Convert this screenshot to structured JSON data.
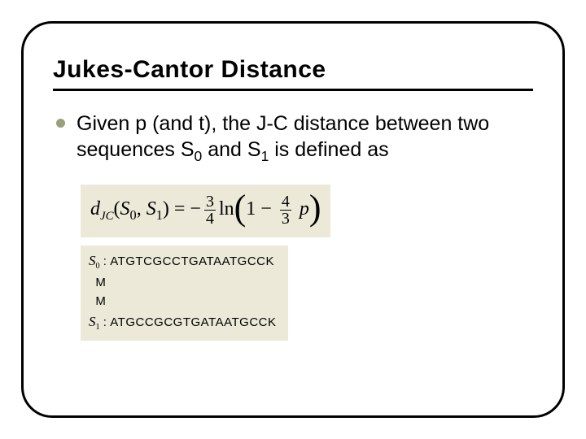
{
  "slide": {
    "title": "Jukes-Cantor Distance",
    "bullet_color": "#9aa07a",
    "body_parts": {
      "p1": "Given p (and t), the J-C distance between two sequences S",
      "s0": "0",
      "p2": " and S",
      "s1": "1",
      "p3": " is defined as"
    },
    "formula": {
      "bg": "#ece9d8",
      "d": "d",
      "jc": "JC",
      "lp": "(",
      "S": "S",
      "s0": "0",
      "comma": ", ",
      "s1": "1",
      "rp": ")",
      "eq": " = ",
      "minus": "−",
      "f1_num": "3",
      "f1_den": "4",
      "ln": "ln",
      "big_l": "(",
      "one": "1",
      "minus2": " − ",
      "f2_num": "4",
      "f2_den": "3",
      "p": "p",
      "big_r": ")"
    },
    "sequences": {
      "bg": "#ece9d8",
      "row0_label": "S",
      "row0_sub": "0",
      "row0_seq": ": ATGTCGCCTGATAATGCCK",
      "m1": "M",
      "m2": "M",
      "row1_label": "S",
      "row1_sub": "1",
      "row1_seq": ": ATGCCGCGTGATAATGCCK"
    },
    "frame_border": "#000000",
    "background": "#ffffff"
  }
}
